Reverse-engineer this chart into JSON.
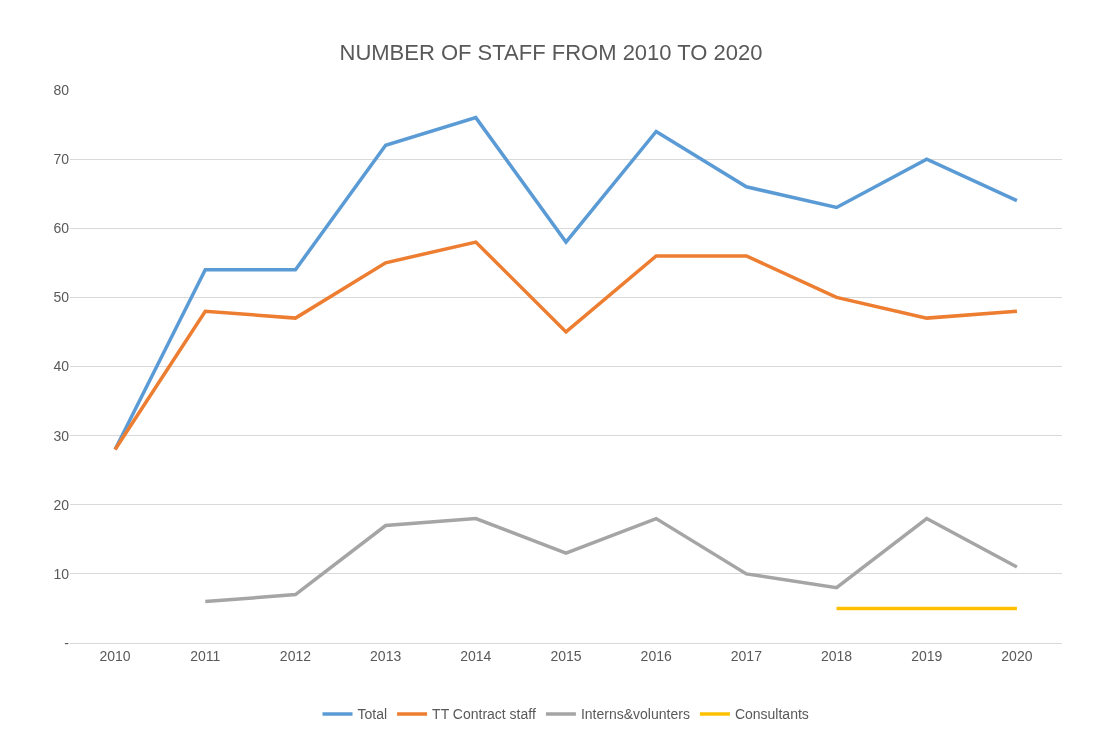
{
  "chart_data": {
    "type": "line",
    "title": "NUMBER OF STAFF FROM 2010 TO 2020",
    "categories": [
      "2010",
      "2011",
      "2012",
      "2013",
      "2014",
      "2015",
      "2016",
      "2017",
      "2018",
      "2019",
      "2020"
    ],
    "series": [
      {
        "name": "Total",
        "color": "#5b9bd5",
        "values": [
          28,
          54,
          54,
          72,
          76,
          58,
          74,
          66,
          63,
          70,
          64
        ]
      },
      {
        "name": "TT Contract staff",
        "color": "#ed7d31",
        "values": [
          28,
          48,
          47,
          55,
          58,
          45,
          56,
          56,
          50,
          47,
          48
        ]
      },
      {
        "name": "Interns&volunters",
        "color": "#a5a5a5",
        "values": [
          null,
          6,
          7,
          17,
          18,
          13,
          18,
          10,
          8,
          18,
          11
        ]
      },
      {
        "name": "Consultants",
        "color": "#ffc000",
        "values": [
          null,
          null,
          null,
          null,
          null,
          null,
          null,
          null,
          5,
          5,
          5
        ]
      }
    ],
    "ylim": [
      0,
      80
    ],
    "yticks": [
      {
        "value": 0,
        "label": "-"
      },
      10,
      20,
      30,
      40,
      50,
      60,
      70,
      80
    ],
    "grid": "y",
    "legend": "bottom",
    "marker": "none",
    "line_style": "solid"
  }
}
